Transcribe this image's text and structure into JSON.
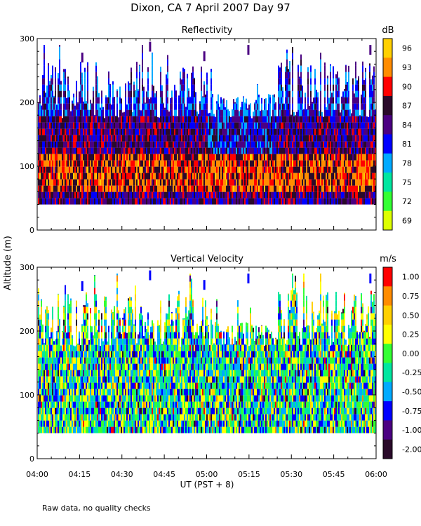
{
  "header": {
    "title": "Dixon, CA   7 April 2007   Day   97"
  },
  "shared": {
    "ylabel": "Altitude  (m)",
    "xlabel": "UT  (PST + 8)",
    "footnote": "Raw data, no quality checks"
  },
  "chart_data": [
    {
      "type": "heatmap",
      "title": "Reflectivity",
      "units": "dB",
      "ylim": [
        0,
        300
      ],
      "yticks": [
        "0",
        "100",
        "200",
        "300"
      ],
      "xlim": [
        "04:00",
        "06:00"
      ],
      "xticks": [
        "04:00",
        "04:15",
        "04:30",
        "04:45",
        "05:00",
        "05:15",
        "05:30",
        "05:45",
        "06:00"
      ],
      "data_floor_m": 40,
      "colorbar": {
        "labels": [
          "96",
          "93",
          "90",
          "87",
          "84",
          "81",
          "78",
          "75",
          "72",
          "69"
        ],
        "colors": [
          "#ffd000",
          "#ff8c00",
          "#ff0000",
          "#2a0a2a",
          "#4b0082",
          "#0000ff",
          "#00aaff",
          "#00e6a0",
          "#33ff33",
          "#ddff00"
        ]
      },
      "description_profile": [
        {
          "altitude_range_m": [
            40,
            60
          ],
          "typical_dB": "84-87"
        },
        {
          "altitude_range_m": [
            60,
            110
          ],
          "typical_dB": "87-93"
        },
        {
          "altitude_range_m": [
            110,
            180
          ],
          "typical_dB": "81-87"
        },
        {
          "altitude_range_m": [
            180,
            280
          ],
          "typical_dB": "78-84"
        }
      ]
    },
    {
      "type": "heatmap",
      "title": "Vertical Velocity",
      "units": "m/s",
      "ylim": [
        0,
        300
      ],
      "yticks": [
        "0",
        "100",
        "200",
        "300"
      ],
      "xlim": [
        "04:00",
        "06:00"
      ],
      "xticks": [
        "04:00",
        "04:15",
        "04:30",
        "04:45",
        "05:00",
        "05:15",
        "05:30",
        "05:45",
        "06:00"
      ],
      "data_floor_m": 40,
      "colorbar": {
        "labels": [
          "1.00",
          "0.75",
          "0.50",
          "0.25",
          "0.00",
          "-0.25",
          "-0.50",
          "-0.75",
          "-1.00",
          "-2.00"
        ],
        "colors": [
          "#ff0000",
          "#ff8c00",
          "#ffd000",
          "#ffff00",
          "#33ff33",
          "#00e6a0",
          "#00aaff",
          "#0000ff",
          "#4b0082",
          "#2a0a2a"
        ]
      }
    }
  ]
}
